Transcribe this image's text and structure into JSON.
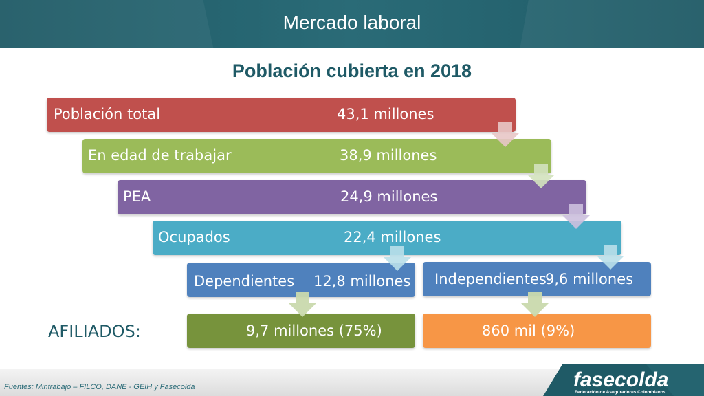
{
  "header": {
    "title": "Mercado laboral"
  },
  "subtitle": "Población cubierta en 2018",
  "funnel": [
    {
      "label": "Población total",
      "value": "43,1 millones",
      "color": "#c0504d"
    },
    {
      "label": "En edad de trabajar",
      "value": "38,9 millones",
      "color": "#9bbb59"
    },
    {
      "label": "PEA",
      "value": "24,9 millones",
      "color": "#8064a2"
    },
    {
      "label": "Ocupados",
      "value": "22,4 millones",
      "color": "#4bacc6"
    }
  ],
  "split": {
    "dependientes": {
      "label": "Dependientes",
      "value": "12,8 millones",
      "color": "#4f81bd"
    },
    "independientes": {
      "label": "Independientes",
      "value": "9,6 millones",
      "color": "#4f81bd"
    }
  },
  "afiliados": {
    "label": "AFILIADOS:",
    "dependientes": {
      "value": "9,7 millones (75%)",
      "color": "#77933c"
    },
    "independientes": {
      "value": "860 mil (9%)",
      "color": "#f79646"
    }
  },
  "footer": {
    "sources": "Fuentes:  Mintrabajo – FILCO, DANE - GEIH y Fasecolda",
    "logo_text": "fasecolda",
    "logo_tagline": "Federación de Aseguradores Colombianos"
  }
}
